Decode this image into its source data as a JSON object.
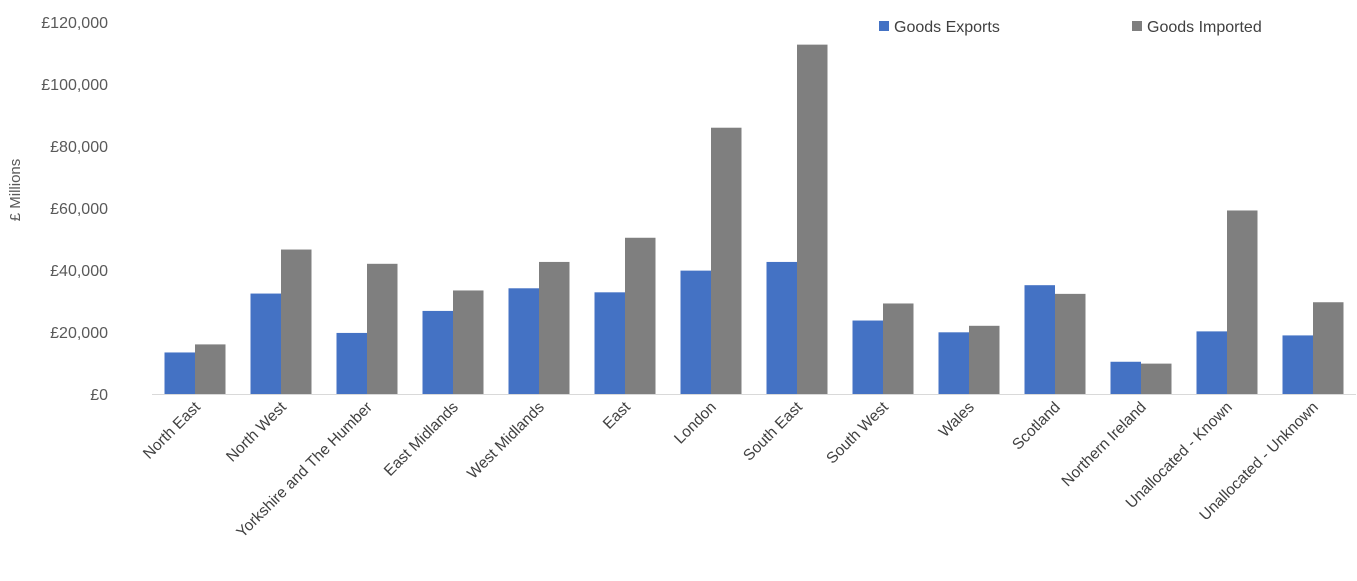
{
  "chart_data": {
    "type": "bar",
    "title": "",
    "xlabel": "",
    "ylabel": "£ Millions",
    "ylim": [
      0,
      120000
    ],
    "y_ticks": [
      0,
      20000,
      40000,
      60000,
      80000,
      100000,
      120000
    ],
    "y_tick_labels": [
      "£0",
      "£20,000",
      "£40,000",
      "£60,000",
      "£80,000",
      "£100,000",
      "£120,000"
    ],
    "grid": false,
    "legend_position": "top-right",
    "categories": [
      "North East",
      "North West",
      "Yorkshire and The Humber",
      "East Midlands",
      "West Midlands",
      "East",
      "London",
      "South East",
      "South West",
      "Wales",
      "Scotland",
      "Northern Ireland",
      "Unallocated - Known",
      "Unallocated - Unknown"
    ],
    "series": [
      {
        "name": "Goods Exports",
        "color": "#4472C4",
        "values": [
          13400,
          32400,
          19700,
          26800,
          34100,
          32800,
          39800,
          42600,
          23700,
          19900,
          35100,
          10400,
          20200,
          18900
        ]
      },
      {
        "name": "Goods Imported",
        "color": "#7F7F7F",
        "values": [
          16000,
          46600,
          42000,
          33400,
          42600,
          50400,
          85900,
          112700,
          29200,
          22000,
          32300,
          9800,
          59200,
          29600
        ]
      }
    ]
  }
}
